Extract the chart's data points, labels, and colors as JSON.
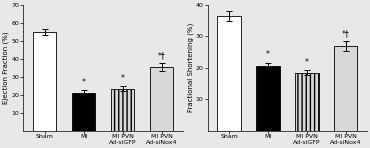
{
  "left": {
    "ylabel": "Ejection Fraction (%)",
    "ylim": [
      0,
      70
    ],
    "yticks": [
      10,
      20,
      30,
      40,
      50,
      60,
      70
    ],
    "values": [
      55.0,
      21.0,
      23.5,
      35.5
    ],
    "errors": [
      1.8,
      1.5,
      1.5,
      2.2
    ],
    "annotations": [
      "",
      "*",
      "*",
      "*†"
    ],
    "categories": [
      "Sham",
      "MI",
      "MI PVN\nAd-siGFP",
      "MI PVN\nAd-siNox4"
    ]
  },
  "right": {
    "ylabel": "Fractional Shortening (%)",
    "ylim": [
      0,
      40
    ],
    "yticks": [
      10,
      20,
      30,
      40
    ],
    "values": [
      36.5,
      20.5,
      18.5,
      27.0
    ],
    "errors": [
      1.5,
      1.2,
      0.8,
      1.5
    ],
    "annotations": [
      "",
      "*",
      "*",
      "*†"
    ],
    "categories": [
      "Sham",
      "MI",
      "MI PVN\nAd-siGFP",
      "MI PVN\nAd-siNox4"
    ]
  },
  "bar_colors": [
    "white",
    "black",
    "#d8d8d8",
    "#d8d8d8"
  ],
  "hatches": [
    "",
    "",
    "||||",
    "===="
  ],
  "edgecolor": "black",
  "bg_color": "#e8e8e8",
  "figsize": [
    3.7,
    1.48
  ],
  "dpi": 100
}
